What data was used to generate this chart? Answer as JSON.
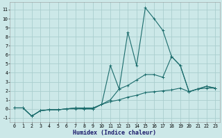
{
  "xlabel": "Humidex (Indice chaleur)",
  "bg_color": "#cce8e8",
  "grid_color": "#aacece",
  "line_color": "#1a6b6b",
  "xlim": [
    -0.5,
    23.5
  ],
  "ylim": [
    -1.5,
    11.8
  ],
  "yticks": [
    -1,
    0,
    1,
    2,
    3,
    4,
    5,
    6,
    7,
    8,
    9,
    10,
    11
  ],
  "xticks": [
    0,
    1,
    2,
    3,
    4,
    5,
    6,
    7,
    8,
    9,
    10,
    11,
    12,
    13,
    14,
    15,
    16,
    17,
    18,
    19,
    20,
    21,
    22,
    23
  ],
  "line1_x": [
    0,
    1,
    2,
    3,
    4,
    5,
    6,
    7,
    8,
    9,
    10,
    11,
    12,
    13,
    14,
    15,
    16,
    17,
    18,
    19,
    20,
    21,
    22,
    23
  ],
  "line1_y": [
    0.1,
    0.1,
    -0.8,
    -0.2,
    -0.1,
    -0.1,
    0.0,
    0.0,
    0.0,
    0.0,
    0.5,
    4.8,
    2.2,
    8.5,
    4.8,
    11.2,
    10.0,
    8.7,
    5.8,
    4.8,
    1.9,
    2.2,
    2.5,
    2.3
  ],
  "line2_x": [
    0,
    1,
    2,
    3,
    4,
    5,
    6,
    7,
    8,
    9,
    10,
    11,
    12,
    13,
    14,
    15,
    16,
    17,
    18,
    19,
    20,
    21,
    22,
    23
  ],
  "line2_y": [
    0.1,
    0.1,
    -0.8,
    -0.2,
    -0.1,
    -0.1,
    0.0,
    0.1,
    0.0,
    0.0,
    0.5,
    1.0,
    2.2,
    2.6,
    3.2,
    3.8,
    3.8,
    3.5,
    5.8,
    4.8,
    1.9,
    2.2,
    2.5,
    2.3
  ],
  "line3_x": [
    0,
    1,
    2,
    3,
    4,
    5,
    6,
    7,
    8,
    9,
    10,
    11,
    12,
    13,
    14,
    15,
    16,
    17,
    18,
    19,
    20,
    21,
    22,
    23
  ],
  "line3_y": [
    0.1,
    0.1,
    -0.8,
    -0.2,
    -0.1,
    -0.1,
    0.0,
    0.1,
    0.1,
    0.1,
    0.5,
    0.8,
    1.0,
    1.3,
    1.5,
    1.8,
    1.9,
    2.0,
    2.1,
    2.3,
    1.9,
    2.2,
    2.3,
    2.3
  ]
}
